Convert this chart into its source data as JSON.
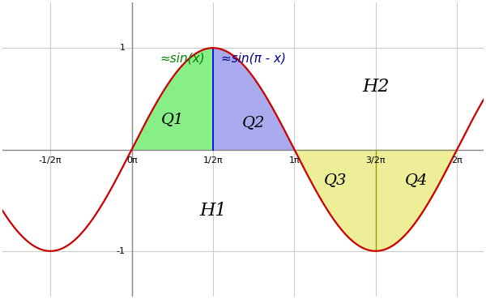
{
  "xlim": [
    -2.5,
    6.8
  ],
  "ylim": [
    -1.45,
    1.45
  ],
  "xticks_vals": [
    -1.5707963267948966,
    0.0,
    1.5707963267948966,
    3.141592653589793,
    4.71238898038469,
    6.283185307179586
  ],
  "xticks_labels": [
    "-1/2π",
    "0π",
    "1/2π",
    "1π",
    "3/2π",
    "2π"
  ],
  "ytick_pos": [
    1,
    -1
  ],
  "ytick_labels": [
    "1",
    "-1"
  ],
  "sine_color": "#cc0000",
  "fill_Q1_color": "#88ee88",
  "fill_Q2_color": "#aaaaee",
  "fill_Q34_color": "#eeee99",
  "label_sin_x": "≈sin(x)",
  "label_sin_pi_x": "≈sin(π - x)",
  "label_Q1": "Q1",
  "label_Q2": "Q2",
  "label_Q3": "Q3",
  "label_Q4": "Q4",
  "label_H1": "H1",
  "label_H2": "H2",
  "bg_color": "#ffffff",
  "grid_color": "#cccccc",
  "axis_color": "#888888"
}
